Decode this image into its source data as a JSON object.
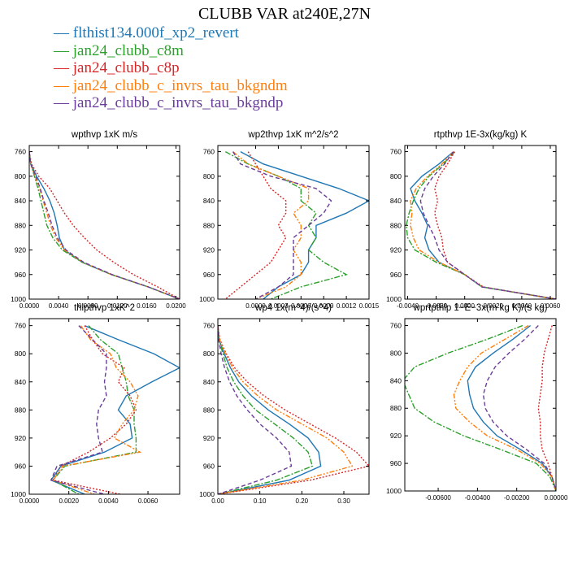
{
  "title": "CLUBB VAR at240E,27N",
  "series": [
    {
      "name": "flthist134.000f_xp2_revert",
      "color": "#1f77b4",
      "dash": ""
    },
    {
      "name": "jan24_clubb_c8m",
      "color": "#2ca02c",
      "dash": "7,2,2,2"
    },
    {
      "name": "jan24_clubb_c8p",
      "color": "#d62728",
      "dash": "2,2"
    },
    {
      "name": "jan24_clubb_c_invrs_tau_bkgndm",
      "color": "#ff7f0e",
      "dash": "6,2,2,2,2,2"
    },
    {
      "name": "jan24_clubb_c_invrs_tau_bkgndp",
      "color": "#6a3d9a",
      "dash": "5,3"
    }
  ],
  "chart_data": [
    {
      "type": "line",
      "title": "wpthvp  1xK m/s",
      "xlim": [
        0.0,
        0.0205
      ],
      "ylim": [
        1000,
        750
      ],
      "xticks": [
        0.0,
        0.004,
        0.008,
        0.012,
        0.016,
        0.02
      ],
      "xticklabels": [
        "0.0000",
        "0.0040",
        "0.0080",
        "0.0120",
        "0.0160",
        "0.0200"
      ],
      "yticks": [
        760,
        800,
        840,
        880,
        920,
        960,
        1000
      ],
      "y": [
        760,
        780,
        800,
        820,
        840,
        860,
        880,
        900,
        920,
        940,
        960,
        980,
        1000
      ],
      "series": [
        {
          "values": [
            0.0,
            0.0002,
            0.001,
            0.002,
            0.0028,
            0.0034,
            0.0038,
            0.0041,
            0.0048,
            0.0072,
            0.0112,
            0.0162,
            0.0205
          ]
        },
        {
          "values": [
            0.0,
            0.0002,
            0.0007,
            0.0012,
            0.0016,
            0.002,
            0.0024,
            0.0032,
            0.0045,
            0.0072,
            0.0112,
            0.0162,
            0.0205
          ]
        },
        {
          "values": [
            0.0,
            0.0003,
            0.0013,
            0.0028,
            0.0038,
            0.0048,
            0.006,
            0.0075,
            0.0092,
            0.0115,
            0.0142,
            0.0175,
            0.0205
          ]
        },
        {
          "values": [
            0.0,
            0.0002,
            0.0008,
            0.0014,
            0.0019,
            0.0024,
            0.0029,
            0.0036,
            0.0048,
            0.0073,
            0.0112,
            0.0162,
            0.0205
          ]
        },
        {
          "values": [
            0.0,
            0.0002,
            0.0009,
            0.0015,
            0.002,
            0.0026,
            0.0031,
            0.0038,
            0.005,
            0.0074,
            0.0113,
            0.0162,
            0.0205
          ]
        }
      ]
    },
    {
      "type": "line",
      "title": "wp2thvp  1xK m^2/s^2",
      "xlim": [
        -0.0005,
        0.0015
      ],
      "ylim": [
        1000,
        750
      ],
      "xticks": [
        0.0,
        0.0003,
        0.0006,
        0.0009,
        0.0012,
        0.0015
      ],
      "xticklabels": [
        "0.0000",
        "0.0003",
        "0.0006",
        "0.0009",
        "0.0012",
        "0.0015"
      ],
      "yticks": [
        760,
        800,
        840,
        880,
        920,
        960,
        1000
      ],
      "y": [
        760,
        780,
        800,
        820,
        840,
        860,
        880,
        900,
        920,
        940,
        960,
        980,
        1000
      ],
      "series": [
        {
          "values": [
            -0.0002,
            0.0001,
            0.0006,
            0.0011,
            0.0015,
            0.0012,
            0.0008,
            0.0008,
            0.0007,
            0.0007,
            0.0006,
            0.0003,
            0.0001
          ]
        },
        {
          "values": [
            -0.0004,
            -0.0001,
            0.0003,
            0.0006,
            0.0006,
            0.0008,
            0.0007,
            0.0008,
            0.0007,
            0.0009,
            0.0012,
            0.0006,
            0.0002
          ]
        },
        {
          "values": [
            -0.0001,
            0.0,
            0.0001,
            0.0002,
            0.0004,
            0.0004,
            0.0003,
            0.0004,
            0.0003,
            0.0002,
            0.0,
            -0.0002,
            -0.0004
          ]
        },
        {
          "values": [
            -0.0003,
            -0.0001,
            0.0003,
            0.0007,
            0.0007,
            0.0005,
            0.0006,
            0.0006,
            0.0005,
            0.0006,
            0.0006,
            0.0004,
            0.0
          ]
        },
        {
          "values": [
            -0.0003,
            -0.0002,
            0.0002,
            0.0008,
            0.001,
            0.0009,
            0.0007,
            0.0005,
            0.0005,
            0.0005,
            0.0005,
            0.0003,
            0.0
          ]
        }
      ]
    },
    {
      "type": "line",
      "title": "rtpthvp  1E-3x(kg/kg) K",
      "xlim": [
        -0.0042,
        0.0064
      ],
      "ylim": [
        1000,
        750
      ],
      "xticks": [
        -0.004,
        -0.002,
        0.0,
        0.002,
        0.004,
        0.006
      ],
      "xticklabels": [
        "-0.0040",
        "-0.0020",
        "0.0000",
        "0.0020",
        "0.0040",
        "0.0060"
      ],
      "yticks": [
        760,
        800,
        840,
        880,
        920,
        960,
        1000
      ],
      "y": [
        760,
        780,
        800,
        820,
        840,
        860,
        880,
        900,
        920,
        940,
        960,
        980,
        1000
      ],
      "series": [
        {
          "values": [
            -0.0008,
            -0.0018,
            -0.003,
            -0.0038,
            -0.0035,
            -0.003,
            -0.0026,
            -0.0028,
            -0.0025,
            -0.0018,
            0.0,
            0.0012,
            0.0064
          ]
        },
        {
          "values": [
            -0.0007,
            -0.0015,
            -0.0025,
            -0.0032,
            -0.0036,
            -0.0039,
            -0.0041,
            -0.004,
            -0.0035,
            -0.002,
            0.0,
            0.0012,
            0.0064
          ]
        },
        {
          "values": [
            -0.0007,
            -0.0012,
            -0.0018,
            -0.0021,
            -0.0019,
            -0.0021,
            -0.0019,
            -0.0016,
            -0.0015,
            -0.0012,
            0.0,
            0.0013,
            0.0064
          ]
        },
        {
          "values": [
            -0.0008,
            -0.0016,
            -0.0026,
            -0.0034,
            -0.0038,
            -0.0037,
            -0.0038,
            -0.0036,
            -0.0032,
            -0.0018,
            0.0,
            0.0012,
            0.0064
          ]
        },
        {
          "values": [
            -0.0008,
            -0.0014,
            -0.0022,
            -0.0028,
            -0.0031,
            -0.0029,
            -0.0025,
            -0.0021,
            -0.0018,
            -0.0012,
            0.0,
            0.0012,
            0.0064
          ]
        }
      ]
    },
    {
      "type": "line",
      "title": "thlpthvp  1xK^2",
      "xlim": [
        0.0,
        0.0076
      ],
      "ylim": [
        1000,
        750
      ],
      "xticks": [
        0.0,
        0.002,
        0.004,
        0.006
      ],
      "xticklabels": [
        "0.0000",
        "0.0020",
        "0.0040",
        "0.0060"
      ],
      "yticks": [
        760,
        800,
        840,
        880,
        920,
        960,
        1000
      ],
      "y": [
        760,
        780,
        800,
        820,
        840,
        860,
        880,
        900,
        920,
        940,
        960,
        980,
        1000
      ],
      "series": [
        {
          "values": [
            0.0028,
            0.0045,
            0.0063,
            0.0076,
            0.0062,
            0.0049,
            0.0045,
            0.0051,
            0.0052,
            0.0038,
            0.0016,
            0.0011,
            0.0028
          ]
        },
        {
          "values": [
            0.003,
            0.0036,
            0.0045,
            0.0047,
            0.0049,
            0.005,
            0.0053,
            0.0053,
            0.0054,
            0.0054,
            0.0018,
            0.0012,
            0.0025
          ]
        },
        {
          "values": [
            0.0028,
            0.0032,
            0.0037,
            0.0048,
            0.0045,
            0.0051,
            0.0054,
            0.0049,
            0.0041,
            0.003,
            0.0016,
            0.0012,
            0.0046
          ]
        },
        {
          "values": [
            0.0026,
            0.0031,
            0.0041,
            0.0044,
            0.0051,
            0.0055,
            0.0053,
            0.0047,
            0.0043,
            0.0056,
            0.0017,
            0.0012,
            0.0033
          ]
        },
        {
          "values": [
            0.0025,
            0.0032,
            0.0039,
            0.0039,
            0.0038,
            0.0039,
            0.0035,
            0.0034,
            0.0035,
            0.0037,
            0.0014,
            0.0011,
            0.0038
          ]
        }
      ]
    },
    {
      "type": "line",
      "title": "wp4  1x(m^4)/(s^4)",
      "xlim": [
        0.0,
        0.36
      ],
      "ylim": [
        1000,
        750
      ],
      "xticks": [
        0.0,
        0.1,
        0.2,
        0.3
      ],
      "xticklabels": [
        "0.00",
        "0.10",
        "0.20",
        "0.30"
      ],
      "yticks": [
        760,
        800,
        840,
        880,
        920,
        960,
        1000
      ],
      "y": [
        760,
        780,
        800,
        820,
        840,
        860,
        880,
        900,
        920,
        940,
        960,
        980,
        1000
      ],
      "series": [
        {
          "values": [
            0.0,
            0.003,
            0.015,
            0.03,
            0.05,
            0.08,
            0.12,
            0.17,
            0.215,
            0.24,
            0.245,
            0.17,
            0.0
          ]
        },
        {
          "values": [
            0.0,
            0.003,
            0.012,
            0.022,
            0.038,
            0.06,
            0.09,
            0.135,
            0.18,
            0.215,
            0.225,
            0.14,
            0.0
          ]
        },
        {
          "values": [
            0.0,
            0.005,
            0.02,
            0.04,
            0.07,
            0.11,
            0.16,
            0.22,
            0.28,
            0.33,
            0.36,
            0.22,
            0.0
          ]
        },
        {
          "values": [
            0.0,
            0.004,
            0.018,
            0.035,
            0.06,
            0.095,
            0.14,
            0.2,
            0.26,
            0.3,
            0.32,
            0.2,
            0.0
          ]
        },
        {
          "values": [
            0.0,
            0.002,
            0.008,
            0.016,
            0.028,
            0.045,
            0.07,
            0.1,
            0.14,
            0.17,
            0.175,
            0.1,
            0.0
          ]
        }
      ]
    },
    {
      "type": "line",
      "title": "wprtpthlp  1−E−3x(m kg K)/(s kg)",
      "xlim": [
        -0.0077,
        0.0
      ],
      "ylim": [
        1000,
        750
      ],
      "xticks": [
        -0.006,
        -0.004,
        -0.002,
        0.0
      ],
      "xticklabels": [
        "-0.00600",
        "-0.00400",
        "-0.00200",
        "0.00000"
      ],
      "yticks": [
        760,
        800,
        840,
        880,
        920,
        960,
        1000
      ],
      "y": [
        760,
        780,
        800,
        820,
        840,
        860,
        880,
        900,
        920,
        940,
        960,
        980,
        1000
      ],
      "series": [
        {
          "values": [
            -0.0013,
            -0.0022,
            -0.0032,
            -0.0041,
            -0.0045,
            -0.0044,
            -0.0042,
            -0.0037,
            -0.003,
            -0.0018,
            -0.0007,
            -0.0002,
            0.0
          ]
        },
        {
          "values": [
            -0.0017,
            -0.0035,
            -0.0055,
            -0.0072,
            -0.0078,
            -0.0075,
            -0.0072,
            -0.0062,
            -0.0047,
            -0.0028,
            -0.001,
            -0.0003,
            0.0
          ]
        },
        {
          "values": [
            -0.0002,
            -0.0004,
            -0.0006,
            -0.0007,
            -0.0007,
            -0.0008,
            -0.0009,
            -0.0008,
            -0.0008,
            -0.0007,
            -0.0004,
            -0.0002,
            0.0
          ]
        },
        {
          "values": [
            -0.0014,
            -0.0026,
            -0.0038,
            -0.0045,
            -0.0049,
            -0.0052,
            -0.0051,
            -0.0044,
            -0.0035,
            -0.002,
            -0.0008,
            -0.0002,
            0.0
          ]
        },
        {
          "values": [
            -0.0009,
            -0.0016,
            -0.0024,
            -0.0031,
            -0.0035,
            -0.0037,
            -0.0036,
            -0.0032,
            -0.0025,
            -0.0015,
            -0.0006,
            -0.0002,
            0.0
          ]
        }
      ]
    }
  ]
}
